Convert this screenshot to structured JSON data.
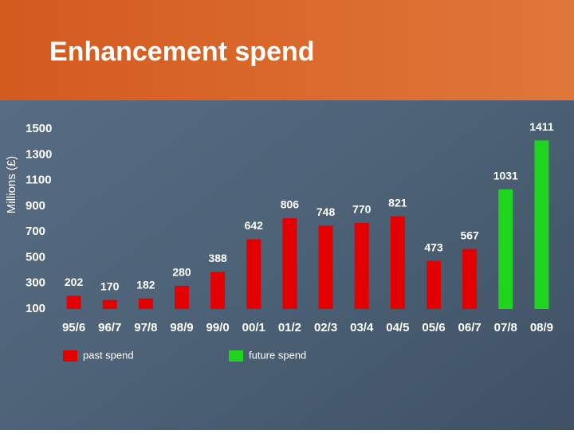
{
  "chart_data": {
    "type": "bar",
    "title": "Enhancement spend",
    "y_label": "Millions (£)",
    "categories": [
      "95/6",
      "96/7",
      "97/8",
      "98/9",
      "99/0",
      "00/1",
      "01/2",
      "02/3",
      "03/4",
      "04/5",
      "05/6",
      "06/7",
      "07/8",
      "08/9"
    ],
    "series": [
      {
        "name": "past spend",
        "color": "#e30000",
        "values": [
          202,
          170,
          182,
          280,
          388,
          642,
          806,
          748,
          770,
          821,
          473,
          567,
          null,
          null
        ]
      },
      {
        "name": "future spend",
        "color": "#1ed41e",
        "values": [
          null,
          null,
          null,
          null,
          null,
          null,
          null,
          null,
          null,
          null,
          null,
          null,
          1031,
          1411
        ]
      }
    ],
    "ylim": [
      100,
      1500
    ],
    "yticks": [
      100,
      300,
      500,
      700,
      900,
      1100,
      1300,
      1500
    ]
  }
}
